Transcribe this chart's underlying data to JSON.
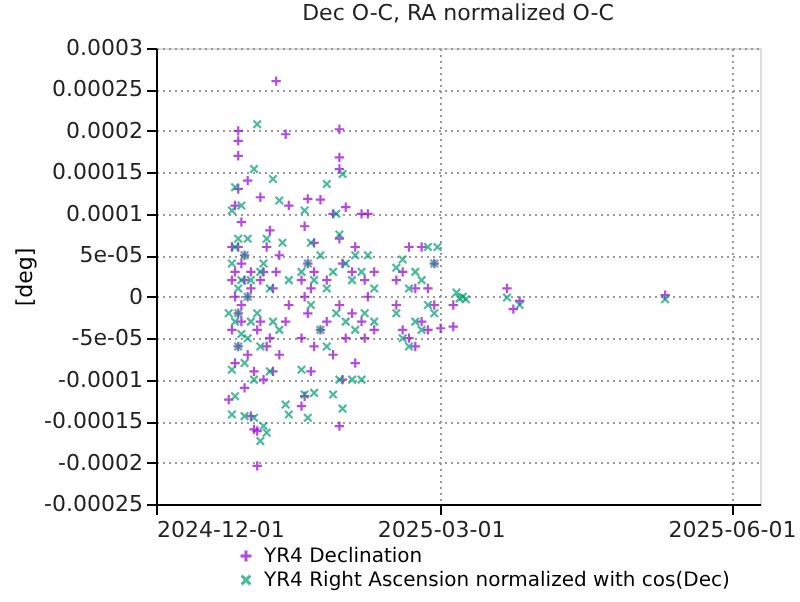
{
  "chart_data": {
    "type": "scatter",
    "title": "Dec O-C, RA normalized O-C",
    "ylabel": "[deg]",
    "xlim": [
      "2024-12-01",
      "2025-06-10"
    ],
    "xticks": [
      "2024-12-01",
      "2025-03-01",
      "2025-06-01"
    ],
    "ylim": [
      -0.00025,
      0.0003
    ],
    "yticks": [
      -0.00025,
      -0.0002,
      -0.00015,
      -0.0001,
      -5e-05,
      0,
      5e-05,
      0.0001,
      0.00015,
      0.0002,
      0.00025,
      0.0003
    ],
    "grid": true,
    "legend": "bottom right",
    "series": [
      {
        "name": "YR4 Declination",
        "color": "#9400d3",
        "marker": "cross",
        "x": [
          "2024-12-24",
          "2024-12-25",
          "2024-12-25",
          "2024-12-25",
          "2024-12-26",
          "2024-12-26",
          "2024-12-26",
          "2024-12-26",
          "2024-12-27",
          "2024-12-27",
          "2024-12-27",
          "2024-12-27",
          "2024-12-27",
          "2024-12-27",
          "2024-12-27",
          "2024-12-28",
          "2024-12-28",
          "2024-12-28",
          "2024-12-28",
          "2024-12-29",
          "2024-12-29",
          "2024-12-29",
          "2024-12-30",
          "2024-12-30",
          "2024-12-30",
          "2024-12-31",
          "2024-12-31",
          "2024-12-31",
          "2025-01-01",
          "2025-01-01",
          "2025-01-02",
          "2025-01-02",
          "2025-01-02",
          "2025-01-03",
          "2025-01-03",
          "2025-01-03",
          "2025-01-04",
          "2025-01-04",
          "2025-01-05",
          "2025-01-05",
          "2025-01-06",
          "2025-01-06",
          "2025-01-07",
          "2025-01-07",
          "2025-01-08",
          "2025-01-08",
          "2025-01-09",
          "2025-01-09",
          "2025-01-11",
          "2025-01-11",
          "2025-01-12",
          "2025-01-12",
          "2025-01-16",
          "2025-01-16",
          "2025-01-16",
          "2025-01-17",
          "2025-01-17",
          "2025-01-17",
          "2025-01-18",
          "2025-01-18",
          "2025-01-18",
          "2025-01-19",
          "2025-01-19",
          "2025-01-20",
          "2025-01-20",
          "2025-01-20",
          "2025-01-22",
          "2025-01-22",
          "2025-01-24",
          "2025-01-24",
          "2025-01-26",
          "2025-01-26",
          "2025-01-28",
          "2025-01-28",
          "2025-01-28",
          "2025-01-28",
          "2025-01-28",
          "2025-01-28",
          "2025-01-29",
          "2025-01-29",
          "2025-01-30",
          "2025-01-30",
          "2025-02-01",
          "2025-02-01",
          "2025-02-02",
          "2025-02-02",
          "2025-02-04",
          "2025-02-04",
          "2025-02-05",
          "2025-02-05",
          "2025-02-06",
          "2025-02-06",
          "2025-02-08",
          "2025-02-08",
          "2025-02-15",
          "2025-02-15",
          "2025-02-17",
          "2025-02-17",
          "2025-02-19",
          "2025-02-19",
          "2025-02-21",
          "2025-02-21",
          "2025-02-23",
          "2025-02-23",
          "2025-02-25",
          "2025-02-25",
          "2025-02-27",
          "2025-02-27",
          "2025-03-01",
          "2025-03-05",
          "2025-03-05",
          "2025-03-22",
          "2025-03-24",
          "2025-03-26",
          "2025-05-11"
        ],
        "values": [
          -0.000124,
          2e-05,
          -4e-05,
          6e-05,
          0.00011,
          -8e-05,
          3e-05,
          0,
          0.0002,
          0.000188,
          0.00017,
          0.00013,
          6e-05,
          -2e-05,
          -6e-05,
          9e-05,
          4e-05,
          -3e-05,
          -1e-05,
          -0.00011,
          5e-05,
          2e-05,
          0.00014,
          -7e-05,
          0,
          -0.000144,
          1e-05,
          3e-05,
          -0.00016,
          -9e-05,
          -0.000204,
          -0.000162,
          -4e-05,
          0.00012,
          -3e-05,
          2e-05,
          -0.0001,
          3e-05,
          6e-05,
          -6e-05,
          -5e-05,
          8e-05,
          -9e-05,
          1e-05,
          0.00026,
          3e-05,
          -7e-05,
          5e-05,
          0.000196,
          -3e-05,
          0.00011,
          -1e-05,
          -0.000132,
          2e-05,
          -5e-05,
          8.5e-05,
          -0.00012,
          0,
          0.000118,
          4e-05,
          -2e-05,
          -9e-05,
          1e-05,
          6.5e-05,
          -6e-05,
          3e-05,
          0.000117,
          -4e-05,
          -3e-05,
          2e-05,
          0.0001,
          -7e-05,
          0.000202,
          0.000168,
          0.000154,
          -0.000156,
          7e-05,
          -1e-05,
          -0.0001,
          4e-05,
          0.000108,
          -5e-05,
          3e-05,
          -2e-05,
          -8e-05,
          6e-05,
          0.0001,
          -3e-05,
          -5e-05,
          2e-05,
          0.0001,
          0,
          -4e-05,
          3e-05,
          -1e-05,
          2e-05,
          -4e-05,
          3e-05,
          6e-05,
          -5e-05,
          -6e-05,
          1e-05,
          6e-05,
          -3e-05,
          1e-05,
          -4e-05,
          -1e-05,
          4e-05,
          -3.8e-05,
          -3.6e-05,
          -1e-05,
          1e-05,
          -1.5e-05,
          -5e-06,
          2e-06
        ]
      },
      {
        "name": "YR4 Right Ascension normalized with cos(Dec)",
        "color": "#009e73",
        "marker": "x",
        "x": [
          "2024-12-24",
          "2024-12-25",
          "2024-12-25",
          "2024-12-25",
          "2024-12-25",
          "2024-12-26",
          "2024-12-26",
          "2024-12-26",
          "2024-12-26",
          "2024-12-27",
          "2024-12-27",
          "2024-12-27",
          "2024-12-27",
          "2024-12-28",
          "2024-12-28",
          "2024-12-28",
          "2024-12-29",
          "2024-12-29",
          "2024-12-29",
          "2024-12-30",
          "2024-12-30",
          "2024-12-30",
          "2024-12-31",
          "2024-12-31",
          "2025-01-01",
          "2025-01-01",
          "2025-01-01",
          "2025-01-02",
          "2025-01-02",
          "2025-01-03",
          "2025-01-03",
          "2025-01-03",
          "2025-01-04",
          "2025-01-04",
          "2025-01-05",
          "2025-01-05",
          "2025-01-06",
          "2025-01-06",
          "2025-01-07",
          "2025-01-07",
          "2025-01-09",
          "2025-01-09",
          "2025-01-10",
          "2025-01-11",
          "2025-01-12",
          "2025-01-12",
          "2025-01-16",
          "2025-01-16",
          "2025-01-17",
          "2025-01-17",
          "2025-01-18",
          "2025-01-18",
          "2025-01-19",
          "2025-01-19",
          "2025-01-20",
          "2025-01-20",
          "2025-01-22",
          "2025-01-22",
          "2025-01-24",
          "2025-01-24",
          "2025-01-24",
          "2025-01-26",
          "2025-01-26",
          "2025-01-27",
          "2025-01-27",
          "2025-01-28",
          "2025-01-28",
          "2025-01-29",
          "2025-01-29",
          "2025-01-30",
          "2025-01-30",
          "2025-02-01",
          "2025-02-01",
          "2025-02-02",
          "2025-02-02",
          "2025-02-04",
          "2025-02-04",
          "2025-02-05",
          "2025-02-06",
          "2025-02-08",
          "2025-02-08",
          "2025-02-15",
          "2025-02-15",
          "2025-02-17",
          "2025-02-17",
          "2025-02-19",
          "2025-02-19",
          "2025-02-21",
          "2025-02-21",
          "2025-02-23",
          "2025-02-23",
          "2025-02-25",
          "2025-02-25",
          "2025-02-27",
          "2025-02-27",
          "2025-02-28",
          "2025-03-06",
          "2025-03-07",
          "2025-03-08",
          "2025-03-09",
          "2025-03-22",
          "2025-03-26",
          "2025-05-11"
        ],
        "values": [
          -2e-05,
          0.000104,
          -8.8e-05,
          -0.000142,
          4e-05,
          -3e-05,
          0.000132,
          -0.00012,
          6e-05,
          -6e-05,
          1e-05,
          7e-05,
          -2e-05,
          -4.5e-05,
          2e-05,
          0.00011,
          -0.000144,
          -8e-05,
          5e-05,
          7e-05,
          -5e-05,
          0,
          -3e-05,
          2e-05,
          0.000154,
          -0.000146,
          -0.0001,
          0.000208,
          -2e-05,
          -0.000174,
          3e-05,
          -6e-05,
          -0.000156,
          4e-05,
          -0.000164,
          7e-05,
          -9e-05,
          1e-05,
          0.000142,
          -3e-05,
          0.000116,
          -4e-05,
          6.5e-05,
          -0.00013,
          2e-05,
          -0.000142,
          -8.8e-05,
          3e-05,
          0.000104,
          -0.000118,
          -0.000146,
          4e-05,
          -1e-05,
          6.5e-05,
          -0.000116,
          2e-05,
          -4e-05,
          5e-05,
          0.000136,
          -6e-05,
          1e-05,
          -0.000118,
          3e-05,
          0.0001,
          -2e-05,
          7.5e-05,
          -0.0001,
          0.000148,
          -0.000135,
          4e-05,
          -3e-05,
          -0.0001,
          2e-05,
          5e-05,
          -4e-05,
          -0.0001,
          3e-05,
          -2e-05,
          5e-05,
          1e-05,
          -3e-05,
          3.5e-05,
          -2e-05,
          4.5e-05,
          -5e-05,
          1e-05,
          -6e-05,
          3e-05,
          -3e-05,
          2e-05,
          -4e-05,
          6e-05,
          -1e-05,
          4e-05,
          -2e-05,
          6e-05,
          5e-06,
          -2e-06,
          0,
          -3e-06,
          -1e-06,
          -1e-05,
          -3e-06
        ]
      }
    ]
  }
}
